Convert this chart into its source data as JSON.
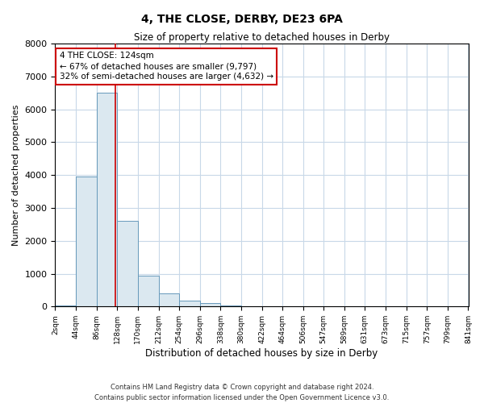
{
  "title": "4, THE CLOSE, DERBY, DE23 6PA",
  "subtitle": "Size of property relative to detached houses in Derby",
  "xlabel": "Distribution of detached houses by size in Derby",
  "ylabel": "Number of detached properties",
  "bin_edges": [
    2,
    44,
    86,
    128,
    170,
    212,
    254,
    296,
    338,
    380,
    422,
    464,
    506,
    547,
    589,
    631,
    673,
    715,
    757,
    799,
    841
  ],
  "bin_counts": [
    30,
    3950,
    6500,
    2600,
    950,
    400,
    170,
    100,
    25,
    15,
    5,
    0,
    0,
    0,
    0,
    0,
    0,
    0,
    0,
    0
  ],
  "bar_color": "#dbe8f0",
  "bar_edge_color": "#6699bb",
  "red_line_x": 124,
  "annotation_line1": "4 THE CLOSE: 124sqm",
  "annotation_line2": "← 67% of detached houses are smaller (9,797)",
  "annotation_line3": "32% of semi-detached houses are larger (4,632) →",
  "annotation_edge_color": "#cc0000",
  "ylim": [
    0,
    8000
  ],
  "yticks": [
    0,
    1000,
    2000,
    3000,
    4000,
    5000,
    6000,
    7000,
    8000
  ],
  "tick_labels": [
    "2sqm",
    "44sqm",
    "86sqm",
    "128sqm",
    "170sqm",
    "212sqm",
    "254sqm",
    "296sqm",
    "338sqm",
    "380sqm",
    "422sqm",
    "464sqm",
    "506sqm",
    "547sqm",
    "589sqm",
    "631sqm",
    "673sqm",
    "715sqm",
    "757sqm",
    "799sqm",
    "841sqm"
  ],
  "footer_line1": "Contains HM Land Registry data © Crown copyright and database right 2024.",
  "footer_line2": "Contains public sector information licensed under the Open Government Licence v3.0.",
  "bg_color": "#ffffff",
  "grid_color": "#c8d8e8"
}
